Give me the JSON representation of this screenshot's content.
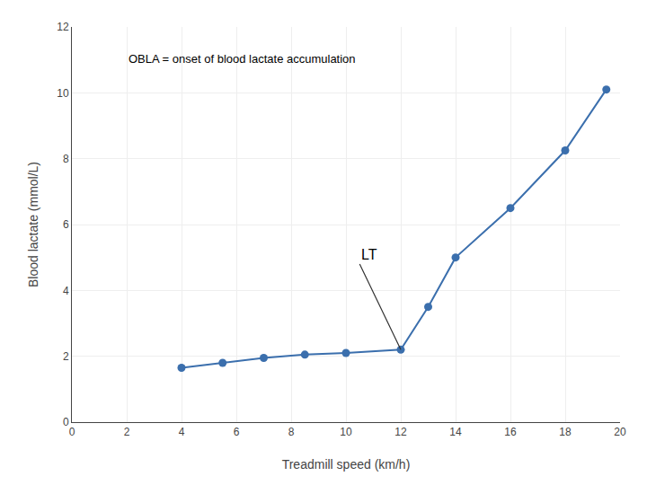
{
  "chart_data": {
    "type": "line",
    "x": [
      4,
      5.5,
      7,
      8.5,
      10,
      12,
      13,
      14,
      16,
      18,
      19.5
    ],
    "values": [
      1.65,
      1.8,
      1.95,
      2.05,
      2.1,
      2.2,
      3.5,
      5.0,
      6.5,
      8.25,
      10.1
    ],
    "color": "#3b6fad",
    "marker": "circle",
    "xlabel": "Treadmill speed (km/h)",
    "ylabel": "Blood lactate (mmol/L)",
    "xlim": [
      0,
      20
    ],
    "ylim": [
      0,
      12
    ],
    "xticks": [
      0,
      2,
      4,
      6,
      8,
      10,
      12,
      14,
      16,
      18,
      20
    ],
    "yticks": [
      0,
      2,
      4,
      6,
      8,
      10,
      12
    ],
    "grid": true,
    "annotations": [
      {
        "text": "OBLA = onset of blood lactate accumulation",
        "x": 2.0,
        "y": 11.3
      },
      {
        "text": "LT",
        "x": 12,
        "y": 2.2,
        "text_x": 10.5,
        "text_y": 4.8
      }
    ]
  }
}
